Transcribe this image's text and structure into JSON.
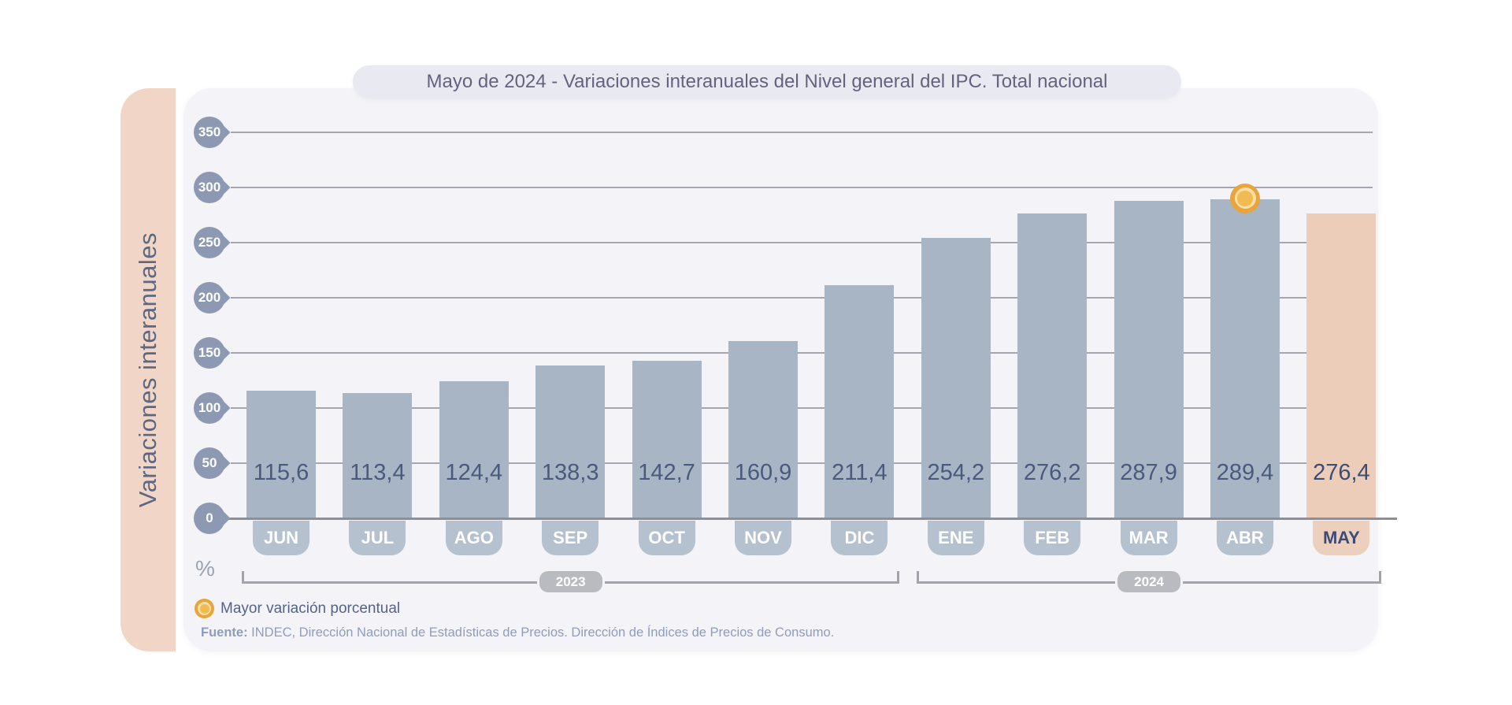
{
  "title": "Mayo de 2024 - Variaciones interanuales del Nivel general del IPC. Total nacional",
  "side_label": "Variaciones interanuales",
  "unit_label": "%",
  "legend": {
    "label": "Mayor variación porcentual"
  },
  "footer": {
    "source_bold": "Fuente:",
    "source_text": " INDEC, Dirección Nacional de Estadísticas de Precios. Dirección de Índices de Precios de Consumo."
  },
  "chart_data": {
    "type": "bar",
    "title": "Mayo de 2024 - Variaciones interanuales del Nivel general del IPC. Total nacional",
    "ylabel": "Variaciones interanuales",
    "xlabel": "",
    "unit": "%",
    "ylim": [
      0,
      350
    ],
    "ytick_interval": 50,
    "yticks": [
      350,
      300,
      250,
      200,
      150,
      100,
      50,
      0
    ],
    "grid": true,
    "legend_position": "bottom-left",
    "categories": [
      "JUN",
      "JUL",
      "AGO",
      "SEP",
      "OCT",
      "NOV",
      "DIC",
      "ENE",
      "FEB",
      "MAR",
      "ABR",
      "MAY"
    ],
    "values": [
      115.6,
      113.4,
      124.4,
      138.3,
      142.7,
      160.9,
      211.4,
      254.2,
      276.2,
      287.9,
      289.4,
      276.4
    ],
    "value_labels": [
      "115,6",
      "113,4",
      "124,4",
      "138,3",
      "142,7",
      "160,9",
      "211,4",
      "254,2",
      "276,2",
      "287,9",
      "289,4",
      "276,4"
    ],
    "year_groups": [
      {
        "label": "2023",
        "months": [
          "JUN",
          "JUL",
          "AGO",
          "SEP",
          "OCT",
          "NOV",
          "DIC"
        ]
      },
      {
        "label": "2024",
        "months": [
          "ENE",
          "FEB",
          "MAR",
          "ABR",
          "MAY"
        ]
      }
    ],
    "highlighted_bar": "MAY",
    "max_marker_bar": "ABR",
    "marker_legend": "Mayor variación porcentual",
    "colors": {
      "bar": "#a8b5c5",
      "highlight_bar": "#eccdba",
      "badge": "#8d98b2",
      "month_tag": "#b5c1cf",
      "highlight_tag": "#eccfbc",
      "value_text": "#4a5a7d",
      "grid": "#a6a6b0",
      "axis": "#8e8e99",
      "marker_ring": "#e9a43c",
      "marker_fill": "#f1bb51",
      "side_strip": "#f1d6c8",
      "panel": "#f4f4f8"
    }
  }
}
